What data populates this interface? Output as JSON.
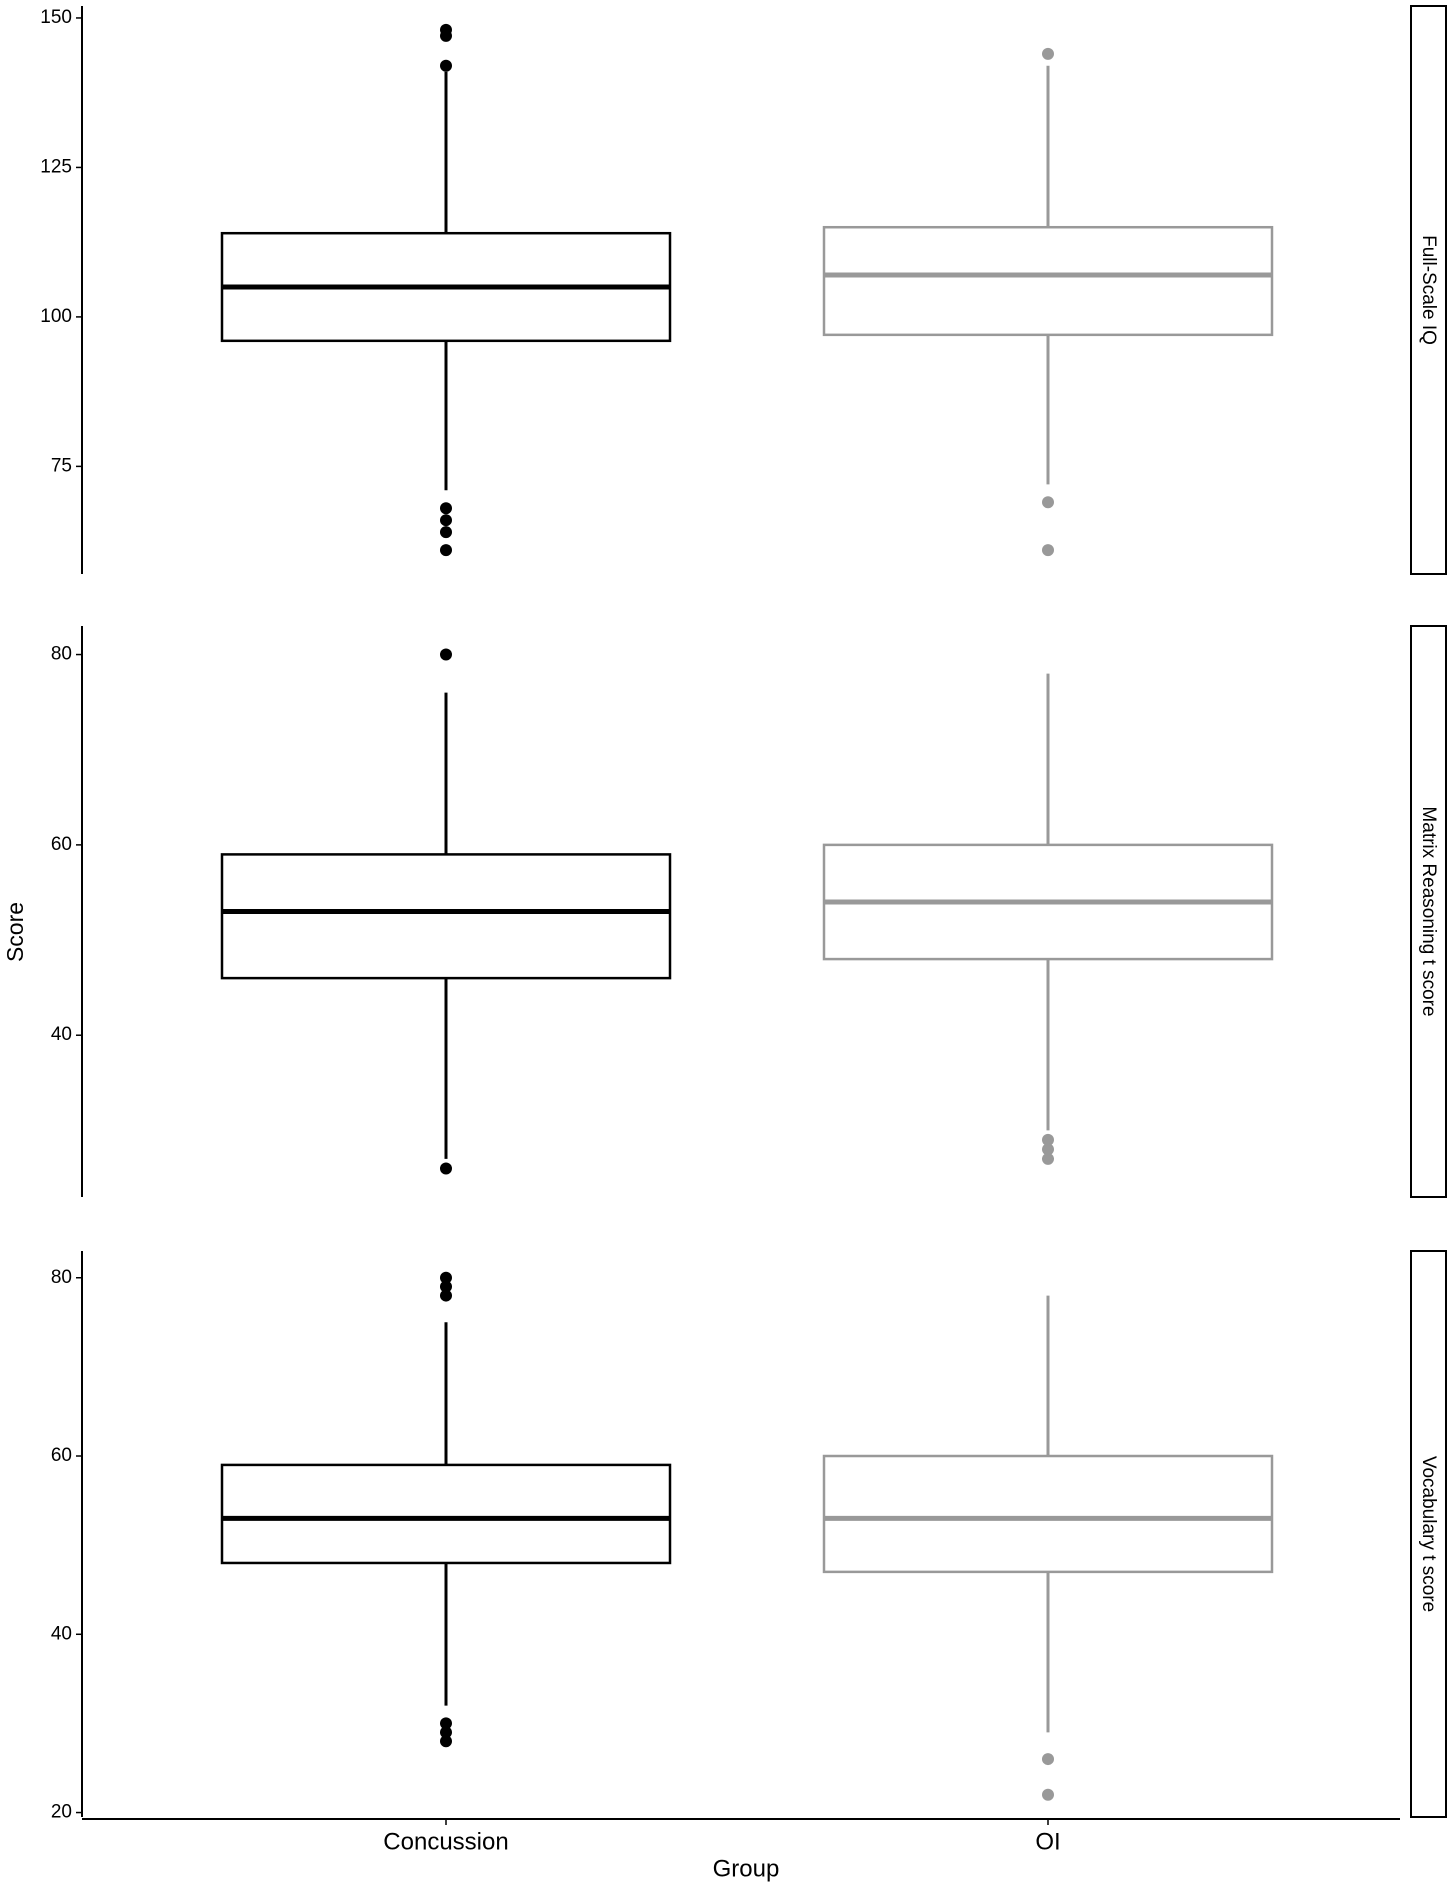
{
  "chart_data": {
    "type": "boxplot",
    "x_label": "Group",
    "y_label": "Score",
    "categories": [
      "Concussion",
      "OI"
    ],
    "colors": [
      "#000000",
      "#999999"
    ],
    "facets": [
      {
        "label": "Full-Scale IQ",
        "ylim": [
          57,
          152
        ],
        "yticks": [
          75,
          100,
          125,
          150
        ],
        "boxes": [
          {
            "min": 71,
            "q1": 96,
            "median": 105,
            "q3": 114,
            "max": 141,
            "outliers": [
              142,
              147,
              148,
              68,
              66,
              64,
              61
            ]
          },
          {
            "min": 72,
            "q1": 97,
            "median": 107,
            "q3": 115,
            "max": 142,
            "outliers": [
              144,
              69,
              61
            ]
          }
        ]
      },
      {
        "label": "Matrix Reasoning t score",
        "ylim": [
          23,
          83
        ],
        "yticks": [
          40,
          60,
          80
        ],
        "boxes": [
          {
            "min": 27,
            "q1": 46,
            "median": 53,
            "q3": 59,
            "max": 76,
            "outliers": [
              80,
              26
            ]
          },
          {
            "min": 30,
            "q1": 48,
            "median": 54,
            "q3": 60,
            "max": 78,
            "outliers": [
              29,
              28,
              27
            ]
          }
        ]
      },
      {
        "label": "Vocabulary t score",
        "ylim": [
          19.5,
          83
        ],
        "yticks": [
          20,
          40,
          60,
          80
        ],
        "boxes": [
          {
            "min": 32,
            "q1": 48,
            "median": 53,
            "q3": 59,
            "max": 75,
            "outliers": [
              80,
              79,
              78,
              30,
              29,
              28
            ]
          },
          {
            "min": 29,
            "q1": 47,
            "median": 53,
            "q3": 60,
            "max": 78,
            "outliers": [
              26,
              22
            ]
          }
        ]
      }
    ]
  }
}
